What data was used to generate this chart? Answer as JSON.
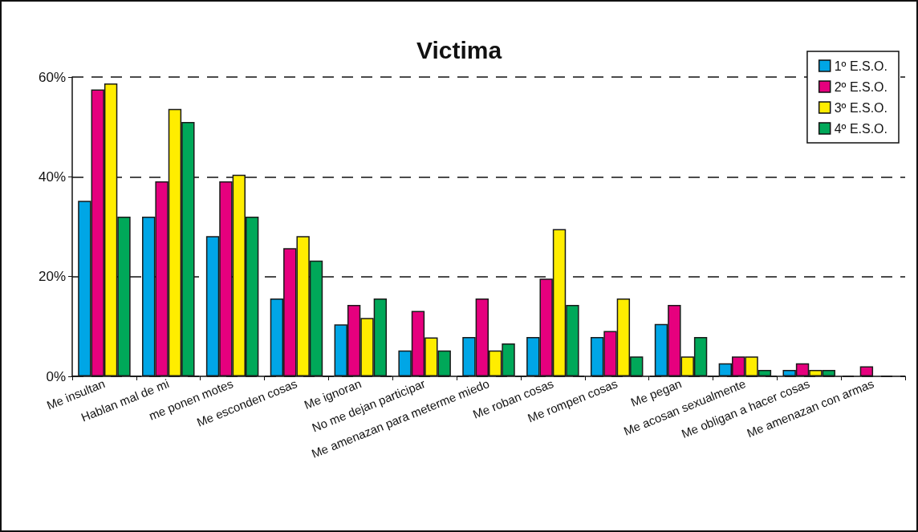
{
  "chart_data": {
    "type": "bar",
    "title": "Victima",
    "categories": [
      "Me insultan",
      "Hablan mal de mi",
      "me ponen motes",
      "Me esconden cosas",
      "Me ignoran",
      "No me dejan participar",
      "Me amenazan para meterme miedo",
      "Me roban cosas",
      "Me rompen cosas",
      "Me pegan",
      "Me acosan sexualmente",
      "Me obligan a hacer cosas",
      "Me amenazan con armas"
    ],
    "series": [
      {
        "name": "1º E.S.O.",
        "color": "#00a6e6",
        "values": [
          35.2,
          32,
          28.1,
          15.6,
          10.4,
          5.2,
          7.9,
          7.9,
          7.9,
          10.5,
          2.6,
          1.3,
          0
        ]
      },
      {
        "name": "2º E.S.O.",
        "color": "#e6007e",
        "values": [
          57.5,
          39.1,
          39.1,
          25.7,
          14.3,
          13.1,
          15.6,
          19.6,
          9.1,
          14.3,
          4,
          2.6,
          2
        ]
      },
      {
        "name": "3º E.S.O.",
        "color": "#ffed00",
        "values": [
          58.7,
          53.6,
          40.4,
          28.1,
          11.7,
          7.8,
          5.2,
          29.5,
          15.6,
          4,
          4,
          1.3,
          0
        ]
      },
      {
        "name": "4º E.S.O.",
        "color": "#00a859",
        "values": [
          32,
          51,
          32,
          23.2,
          15.6,
          5.2,
          6.6,
          14.3,
          4,
          7.9,
          1.3,
          1.3,
          0
        ]
      }
    ],
    "ylim": [
      0,
      60
    ],
    "yticks": [
      {
        "value": 0,
        "label": "0%"
      },
      {
        "value": 20,
        "label": "20%"
      },
      {
        "value": 40,
        "label": "40%"
      },
      {
        "value": 60,
        "label": "60%"
      }
    ],
    "grid": "y",
    "legend": "top right"
  }
}
